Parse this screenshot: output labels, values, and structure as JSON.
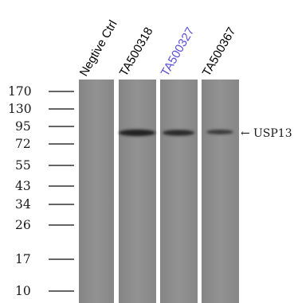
{
  "lanes": [
    {
      "label": "Negtive Ctrl",
      "highlight": false
    },
    {
      "label": "TA500318",
      "highlight": false
    },
    {
      "label": "TA500327",
      "highlight": true
    },
    {
      "label": "TA500367",
      "highlight": false
    }
  ],
  "mw_markers": [
    "170",
    "130",
    "95",
    "72",
    "55",
    "43",
    "34",
    "26",
    "17",
    "10"
  ],
  "target": {
    "label": "USP13",
    "arrow": "←"
  },
  "colors": {
    "membrane": "#8d8d8d",
    "band": "#262626",
    "highlight_label": "#5a4fd6"
  }
}
